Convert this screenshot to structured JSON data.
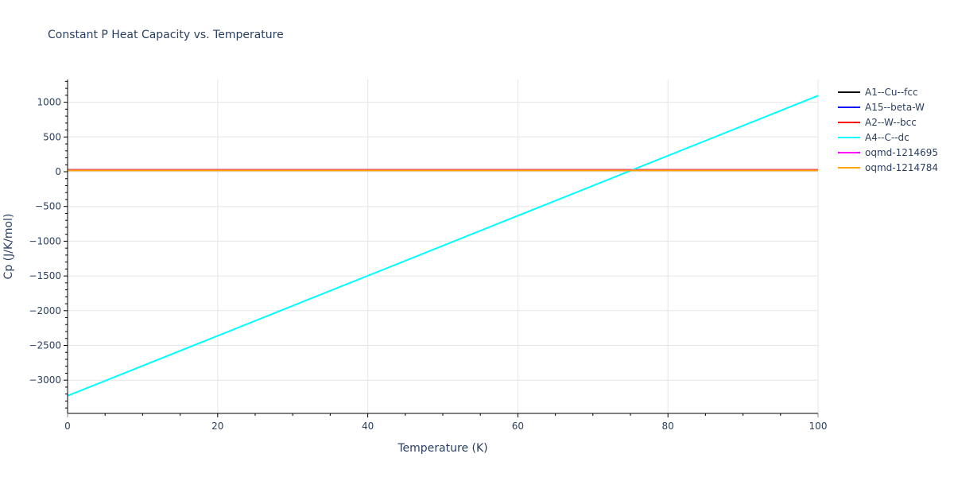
{
  "title": "Constant P Heat Capacity vs. Temperature",
  "chart_data": {
    "type": "line",
    "title": "Constant P Heat Capacity vs. Temperature",
    "xlabel": "Temperature (K)",
    "ylabel": "Cp (J/K/mol)",
    "xlim": [
      0,
      100
    ],
    "ylim": [
      -3450,
      1320
    ],
    "x_ticks": [
      0,
      20,
      40,
      60,
      80,
      100
    ],
    "x_tick_labels": [
      "0",
      "20",
      "40",
      "60",
      "80",
      "100"
    ],
    "y_ticks": [
      -3000,
      -2500,
      -2000,
      -1500,
      -1000,
      -500,
      0,
      500,
      1000
    ],
    "y_tick_labels": [
      "−3000",
      "−2500",
      "−2000",
      "−1500",
      "−1000",
      "−500",
      "0",
      "500",
      "1000"
    ],
    "grid": true,
    "legend_position": "right",
    "series": [
      {
        "name": "A1--Cu--fcc",
        "color": "#000000",
        "x": [
          0,
          100
        ],
        "y": [
          24,
          24
        ]
      },
      {
        "name": "A15--beta-W",
        "color": "#0000ff",
        "x": [
          0,
          100
        ],
        "y": [
          24,
          24
        ]
      },
      {
        "name": "A2--W--bcc",
        "color": "#ff0000",
        "x": [
          0,
          100
        ],
        "y": [
          26,
          26
        ]
      },
      {
        "name": "A4--C--dc",
        "color": "#00ffff",
        "x": [
          0,
          100
        ],
        "y": [
          -3225,
          1095
        ]
      },
      {
        "name": "oqmd-1214695",
        "color": "#ff00ff",
        "x": [
          0,
          100
        ],
        "y": [
          22,
          22
        ]
      },
      {
        "name": "oqmd-1214784",
        "color": "#ffa500",
        "x": [
          0,
          100
        ],
        "y": [
          18,
          18
        ]
      }
    ]
  }
}
